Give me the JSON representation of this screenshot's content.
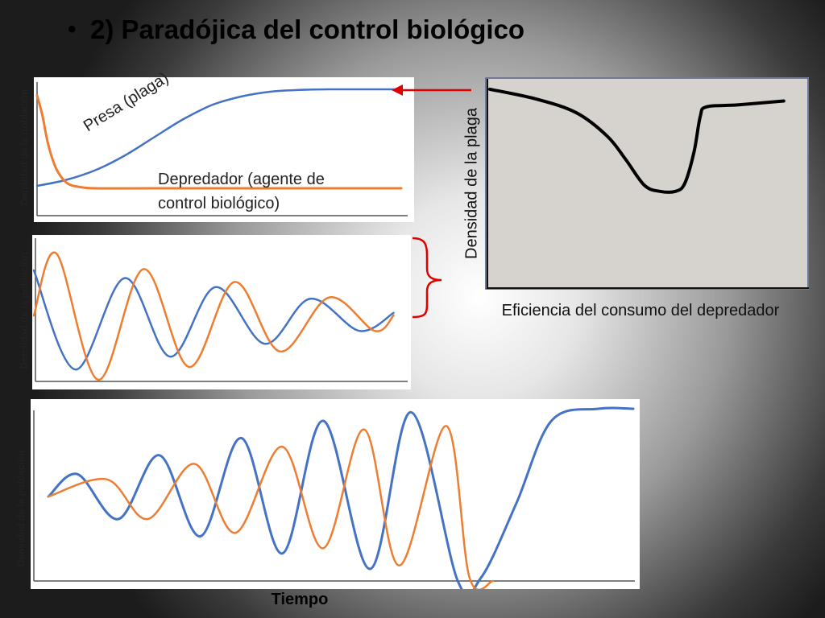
{
  "slide": {
    "bullet": "•",
    "title": "2) Paradójica del control biológico",
    "time_label": "Tiempo"
  },
  "colors": {
    "prey": "#4472c4",
    "predator": "#ed7d31",
    "arrow": "#e00000",
    "efficiency_curve": "#000000",
    "efficiency_bg": "#d6d3ce"
  },
  "chart_data": [
    {
      "id": "stable",
      "type": "line",
      "ylabel": "Densidad de la población",
      "xlabel": "",
      "annotations": [
        "Presa (plaga)",
        "Depredador (agente de control biológico)"
      ],
      "series": [
        {
          "name": "Presa (plaga)",
          "color": "#4472c4",
          "x": [
            0,
            0.08,
            0.16,
            0.24,
            0.32,
            0.4,
            0.48,
            0.56,
            0.64,
            0.72,
            0.8,
            0.88,
            1.0
          ],
          "values": [
            0.2,
            0.25,
            0.33,
            0.45,
            0.6,
            0.75,
            0.87,
            0.94,
            0.98,
            0.995,
            1.0,
            1.0,
            1.0
          ]
        },
        {
          "name": "Depredador (agente de control biológico)",
          "color": "#ed7d31",
          "x": [
            0,
            0.015,
            0.03,
            0.05,
            0.07,
            0.09,
            0.12,
            0.16,
            0.3,
            0.5,
            0.7,
            1.0
          ],
          "values": [
            0.95,
            0.78,
            0.55,
            0.36,
            0.26,
            0.21,
            0.19,
            0.18,
            0.18,
            0.18,
            0.18,
            0.18
          ]
        }
      ]
    },
    {
      "id": "damped",
      "type": "line",
      "ylabel": "Densidad de la población",
      "xlabel": "",
      "series": [
        {
          "color": "#4472c4",
          "x": [
            0,
            0.11,
            0.24,
            0.36,
            0.48,
            0.61,
            0.73,
            0.86,
            0.95
          ],
          "values": [
            0.85,
            0.08,
            0.79,
            0.18,
            0.72,
            0.28,
            0.63,
            0.38,
            0.52
          ]
        },
        {
          "color": "#ed7d31",
          "x": [
            0,
            0.06,
            0.17,
            0.29,
            0.41,
            0.53,
            0.65,
            0.78,
            0.9,
            0.95
          ],
          "values": [
            0.5,
            0.98,
            0.0,
            0.86,
            0.1,
            0.76,
            0.22,
            0.64,
            0.38,
            0.5
          ]
        }
      ]
    },
    {
      "id": "divergent",
      "type": "line",
      "ylabel": "Densidad de la población",
      "xlabel": "Tiempo",
      "series": [
        {
          "color": "#4472c4",
          "x": [
            0,
            0.05,
            0.12,
            0.19,
            0.26,
            0.33,
            0.4,
            0.47,
            0.55,
            0.62,
            0.7,
            0.74,
            0.8,
            0.86,
            0.94,
            1.0
          ],
          "values": [
            0.49,
            0.62,
            0.36,
            0.73,
            0.26,
            0.83,
            0.16,
            0.93,
            0.07,
            0.98,
            0.0,
            0.02,
            0.45,
            0.93,
            1.0,
            1.0
          ]
        },
        {
          "color": "#ed7d31",
          "x": [
            0,
            0.1,
            0.17,
            0.25,
            0.32,
            0.4,
            0.47,
            0.54,
            0.6,
            0.68,
            0.72,
            0.76
          ],
          "values": [
            0.49,
            0.59,
            0.36,
            0.68,
            0.28,
            0.78,
            0.19,
            0.88,
            0.09,
            0.9,
            0.02,
            0.0
          ]
        }
      ]
    },
    {
      "id": "efficiency",
      "type": "line",
      "xlabel": "Eficiencia del consumo del depredador",
      "ylabel": "Densidad de la plaga",
      "series": [
        {
          "color": "#000000",
          "x": [
            0,
            0.15,
            0.28,
            0.38,
            0.44,
            0.5,
            0.55,
            0.6,
            0.63,
            0.66,
            0.68,
            0.7,
            0.8,
            0.95
          ],
          "values": [
            0.98,
            0.93,
            0.86,
            0.74,
            0.62,
            0.49,
            0.46,
            0.46,
            0.5,
            0.66,
            0.84,
            0.89,
            0.9,
            0.92
          ]
        }
      ]
    }
  ]
}
